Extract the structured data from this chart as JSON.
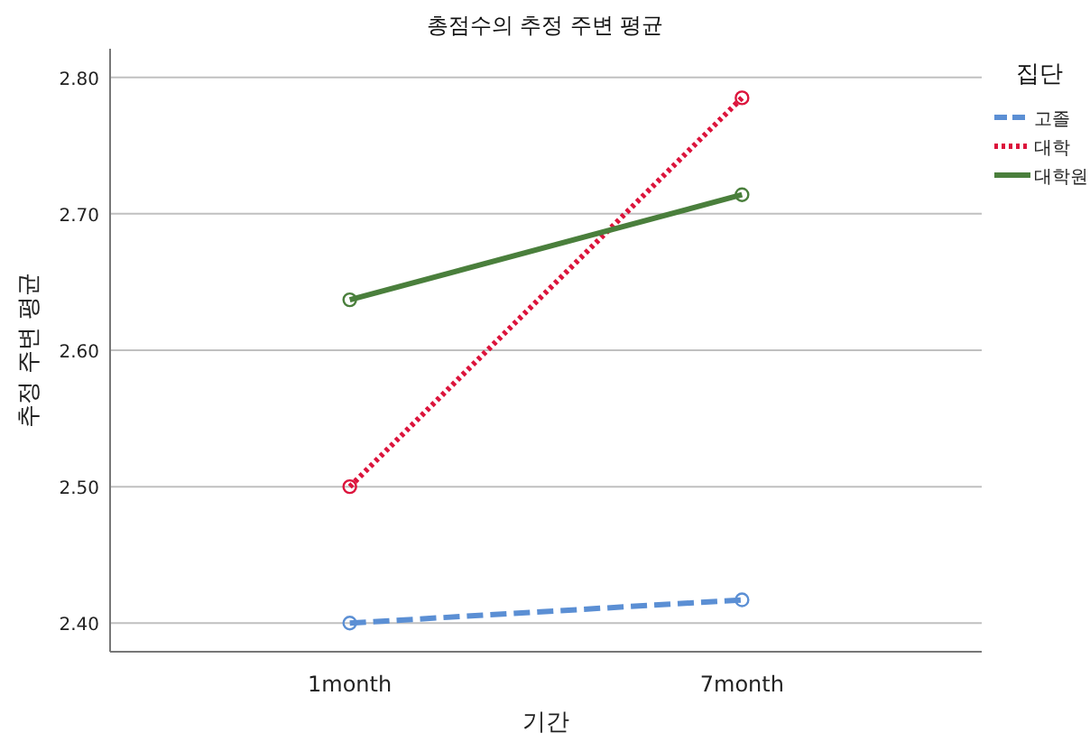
{
  "chart_data": {
    "type": "line",
    "title": "총점수의 추정 주변 평균",
    "xlabel": "기간",
    "ylabel": "추정 주변 평균",
    "legend_title": "집단",
    "categories": [
      "1month",
      "7month"
    ],
    "series": [
      {
        "name": "고졸",
        "color": "#5b8fd4",
        "values": [
          2.4,
          2.417
        ],
        "line_style": "dashed"
      },
      {
        "name": "대학",
        "color": "#dc143c",
        "values": [
          2.5,
          2.785
        ],
        "line_style": "dotted"
      },
      {
        "name": "대학원",
        "color": "#4a7f3c",
        "values": [
          2.637,
          2.714
        ],
        "line_style": "solid"
      }
    ],
    "ylim": [
      2.379,
      2.821
    ],
    "yticks": [
      {
        "value": 2.4,
        "label": "2.40"
      },
      {
        "value": 2.5,
        "label": "2.50"
      },
      {
        "value": 2.6,
        "label": "2.60"
      },
      {
        "value": 2.7,
        "label": "2.70"
      },
      {
        "value": 2.8,
        "label": "2.80"
      }
    ],
    "grid": "y",
    "legend": "right",
    "marker": "circle"
  }
}
